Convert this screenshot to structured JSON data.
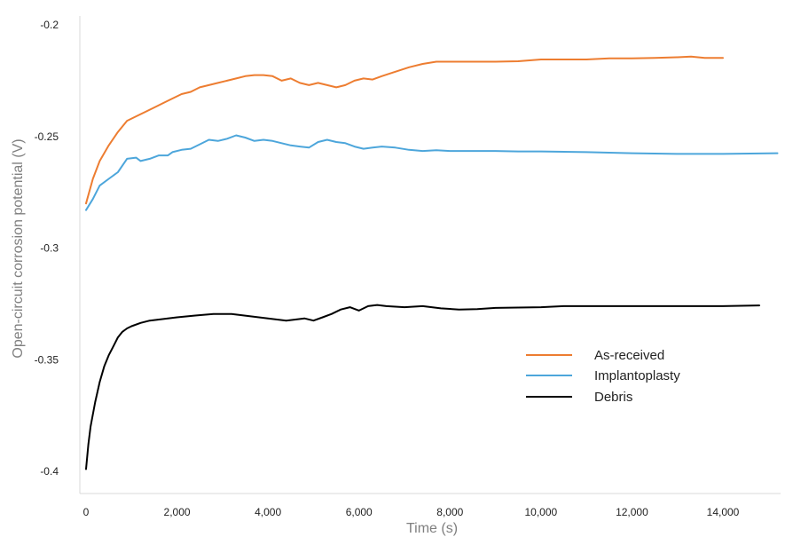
{
  "chart_data": {
    "type": "line",
    "xlabel": "Time (s)",
    "ylabel": "Open-circuit corrosion potential (V)",
    "xlim": [
      0,
      15200
    ],
    "ylim": [
      -0.4,
      -0.195
    ],
    "x_ticks": [
      0,
      2000,
      4000,
      6000,
      8000,
      10000,
      12000,
      14000
    ],
    "x_tick_labels": [
      "0",
      "2,000",
      "4,000",
      "6,000",
      "8,000",
      "10,000",
      "12,000",
      "14,000"
    ],
    "y_ticks": [
      -0.2,
      -0.25,
      -0.3,
      -0.35,
      -0.4
    ],
    "y_tick_labels": [
      "-0.2",
      "-0.25",
      "-0.3",
      "-0.35",
      "-0.4"
    ],
    "grid": false,
    "legend_position": "right",
    "series": [
      {
        "name": "As-received",
        "color": "#ed7d31",
        "x": [
          0,
          150,
          300,
          500,
          700,
          900,
          1100,
          1300,
          1500,
          1700,
          1900,
          2100,
          2300,
          2500,
          2700,
          2900,
          3100,
          3300,
          3500,
          3700,
          3900,
          4100,
          4300,
          4500,
          4700,
          4900,
          5100,
          5300,
          5500,
          5700,
          5900,
          6100,
          6300,
          6500,
          6800,
          7100,
          7400,
          7700,
          8000,
          8500,
          9000,
          9500,
          10000,
          10500,
          11000,
          11500,
          12000,
          12500,
          13000,
          13300,
          13600,
          14000
        ],
        "y": [
          -0.28,
          -0.269,
          -0.261,
          -0.254,
          -0.248,
          -0.243,
          -0.241,
          -0.239,
          -0.237,
          -0.235,
          -0.233,
          -0.231,
          -0.23,
          -0.228,
          -0.227,
          -0.226,
          -0.225,
          -0.224,
          -0.223,
          -0.2225,
          -0.2225,
          -0.223,
          -0.225,
          -0.224,
          -0.226,
          -0.227,
          -0.226,
          -0.227,
          -0.228,
          -0.227,
          -0.225,
          -0.224,
          -0.2245,
          -0.223,
          -0.221,
          -0.219,
          -0.2175,
          -0.2165,
          -0.2165,
          -0.2165,
          -0.2165,
          -0.2163,
          -0.2155,
          -0.2155,
          -0.2155,
          -0.215,
          -0.215,
          -0.2148,
          -0.2145,
          -0.2142,
          -0.2148,
          -0.2148
        ]
      },
      {
        "name": "Implantoplasty",
        "color": "#4da6db",
        "x": [
          0,
          150,
          300,
          500,
          700,
          900,
          1100,
          1200,
          1400,
          1600,
          1800,
          1900,
          2100,
          2300,
          2500,
          2700,
          2900,
          3100,
          3300,
          3500,
          3700,
          3900,
          4100,
          4300,
          4500,
          4700,
          4900,
          5100,
          5300,
          5500,
          5700,
          5900,
          6100,
          6300,
          6500,
          6800,
          7100,
          7400,
          7700,
          8000,
          8500,
          9000,
          9500,
          10000,
          11000,
          12000,
          13000,
          14000,
          15200
        ],
        "y": [
          -0.283,
          -0.278,
          -0.272,
          -0.269,
          -0.266,
          -0.26,
          -0.2595,
          -0.261,
          -0.26,
          -0.2585,
          -0.2585,
          -0.257,
          -0.256,
          -0.2555,
          -0.2535,
          -0.2515,
          -0.252,
          -0.251,
          -0.2495,
          -0.2505,
          -0.252,
          -0.2515,
          -0.252,
          -0.253,
          -0.254,
          -0.2545,
          -0.255,
          -0.2525,
          -0.2515,
          -0.2525,
          -0.253,
          -0.2545,
          -0.2555,
          -0.255,
          -0.2545,
          -0.255,
          -0.256,
          -0.2565,
          -0.2562,
          -0.2565,
          -0.2565,
          -0.2565,
          -0.2567,
          -0.2567,
          -0.257,
          -0.2575,
          -0.2578,
          -0.2578,
          -0.2575
        ]
      },
      {
        "name": "Debris",
        "color": "#000000",
        "x": [
          0,
          50,
          100,
          200,
          300,
          400,
          500,
          600,
          700,
          800,
          900,
          1000,
          1200,
          1400,
          1600,
          1800,
          2000,
          2400,
          2800,
          3200,
          3600,
          4000,
          4200,
          4400,
          4600,
          4800,
          5000,
          5200,
          5400,
          5600,
          5800,
          6000,
          6200,
          6400,
          6600,
          7000,
          7400,
          7800,
          8200,
          8600,
          9000,
          10000,
          10500,
          11000,
          12000,
          13000,
          14000,
          14800
        ],
        "y": [
          -0.399,
          -0.388,
          -0.38,
          -0.369,
          -0.36,
          -0.353,
          -0.348,
          -0.344,
          -0.34,
          -0.3375,
          -0.336,
          -0.335,
          -0.3335,
          -0.3325,
          -0.332,
          -0.3315,
          -0.331,
          -0.3302,
          -0.3295,
          -0.3295,
          -0.3305,
          -0.3315,
          -0.332,
          -0.3325,
          -0.332,
          -0.3315,
          -0.3325,
          -0.331,
          -0.3295,
          -0.3275,
          -0.3265,
          -0.328,
          -0.326,
          -0.3255,
          -0.326,
          -0.3265,
          -0.326,
          -0.327,
          -0.3275,
          -0.3273,
          -0.3268,
          -0.3265,
          -0.326,
          -0.326,
          -0.326,
          -0.326,
          -0.326,
          -0.3257
        ]
      }
    ]
  }
}
